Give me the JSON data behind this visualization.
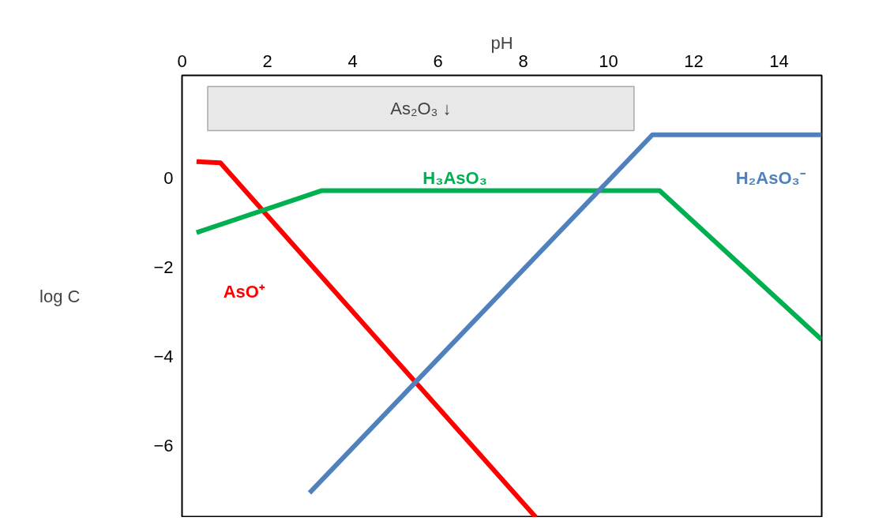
{
  "chart_data": {
    "type": "line",
    "xlabel": "pH",
    "ylabel": "log C",
    "xlim": [
      0,
      15
    ],
    "xticks": [
      0,
      2,
      4,
      6,
      8,
      10,
      12,
      14
    ],
    "ylim": [
      -7.6,
      2.3
    ],
    "yticks": [
      0,
      -2,
      -4,
      -6
    ],
    "grid": false,
    "marker": "none",
    "line_style": "solid",
    "series": [
      {
        "name": "AsO⁺",
        "color": "#ff0000",
        "x": [
          0.34,
          0.9,
          8.3
        ],
        "values": [
          0.37,
          0.34,
          -7.6
        ]
      },
      {
        "name": "H₃AsO₃",
        "color": "#00b050",
        "x": [
          0.34,
          3.28,
          11.2,
          15
        ],
        "values": [
          -1.22,
          -0.28,
          -0.28,
          -3.62
        ]
      },
      {
        "name": "H₂AsO₃⁻",
        "color": "#4f81bd",
        "x": [
          2.99,
          11.03,
          15
        ],
        "values": [
          -7.05,
          0.97,
          0.97
        ]
      }
    ],
    "bands": [
      {
        "axis": "x",
        "from": 0.6,
        "to": 10.6,
        "label": "As₂O₃ ↓",
        "color": "#e8e8e8"
      }
    ]
  }
}
